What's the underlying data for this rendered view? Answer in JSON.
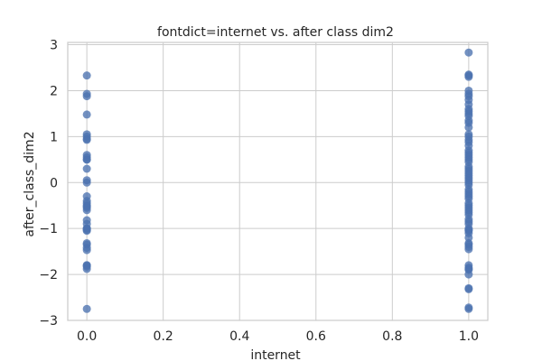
{
  "chart_data": {
    "type": "scatter",
    "title": "fontdict=internet vs. after class dim2",
    "xlabel": "internet",
    "ylabel": "after_class_dim2",
    "xlim": [
      -0.05,
      1.05
    ],
    "ylim": [
      -3,
      3.05
    ],
    "xticks": [
      0.0,
      0.2,
      0.4,
      0.6,
      0.8,
      1.0
    ],
    "xtick_labels": [
      "0.0",
      "0.2",
      "0.4",
      "0.6",
      "0.8",
      "1.0"
    ],
    "yticks": [
      -3,
      -2,
      -1,
      0,
      1,
      2,
      3
    ],
    "ytick_labels": [
      "−3",
      "−2",
      "−1",
      "0",
      "1",
      "2",
      "3"
    ],
    "grid": true,
    "point_color": "#4c72b0",
    "series": [
      {
        "x": [
          0,
          0,
          0,
          0,
          0,
          0,
          0,
          0,
          0,
          0,
          0,
          0,
          0,
          0,
          0,
          0,
          0,
          0,
          0,
          0,
          0,
          0,
          0,
          0,
          0,
          0,
          0,
          0,
          0,
          0,
          0,
          0,
          0,
          0,
          0,
          0,
          0
        ],
        "y": [
          2.33,
          1.93,
          1.88,
          1.48,
          1.05,
          1.0,
          0.93,
          0.6,
          0.55,
          0.5,
          0.3,
          0.05,
          0.0,
          -0.3,
          -0.4,
          -0.45,
          -0.52,
          -0.55,
          -0.6,
          -0.82,
          -0.9,
          -1.0,
          -1.03,
          -1.05,
          -1.32,
          -1.35,
          -1.42,
          -1.47,
          -1.8,
          -1.83,
          -1.88,
          -2.75,
          0.95,
          0.5,
          -0.5,
          -1.0,
          -1.8
        ]
      },
      {
        "x": [
          1,
          1,
          1,
          1,
          1,
          1,
          1,
          1,
          1,
          1,
          1,
          1,
          1,
          1,
          1,
          1,
          1,
          1,
          1,
          1,
          1,
          1,
          1,
          1,
          1,
          1,
          1,
          1,
          1,
          1,
          1,
          1,
          1,
          1,
          1,
          1,
          1,
          1,
          1,
          1,
          1,
          1,
          1,
          1,
          1,
          1,
          1,
          1,
          1,
          1,
          1,
          1,
          1,
          1,
          1,
          1,
          1,
          1,
          1,
          1,
          1,
          1,
          1,
          1,
          1,
          1,
          1,
          1
        ],
        "y": [
          2.83,
          2.35,
          2.33,
          1.93,
          1.88,
          1.8,
          1.55,
          1.5,
          1.45,
          1.35,
          1.3,
          1.05,
          1.0,
          0.93,
          0.88,
          0.7,
          0.6,
          0.55,
          0.5,
          0.45,
          0.35,
          0.3,
          0.2,
          0.1,
          0.05,
          0.0,
          -0.05,
          -0.2,
          -0.3,
          -0.35,
          -0.45,
          -0.5,
          -0.55,
          -0.6,
          -0.8,
          -0.85,
          -0.9,
          -1.0,
          -1.03,
          -1.05,
          -1.32,
          -1.35,
          -1.45,
          -1.8,
          -1.85,
          -1.88,
          -2.3,
          -2.32,
          -2.72,
          -2.75,
          1.2,
          0.8,
          0.25,
          -0.15,
          -0.7,
          -1.2,
          2.0,
          1.7,
          0.15,
          -0.25,
          -1.1,
          -1.4,
          -1.9,
          2.3,
          1.6,
          0.65,
          -0.65,
          -2.0
        ]
      }
    ]
  }
}
